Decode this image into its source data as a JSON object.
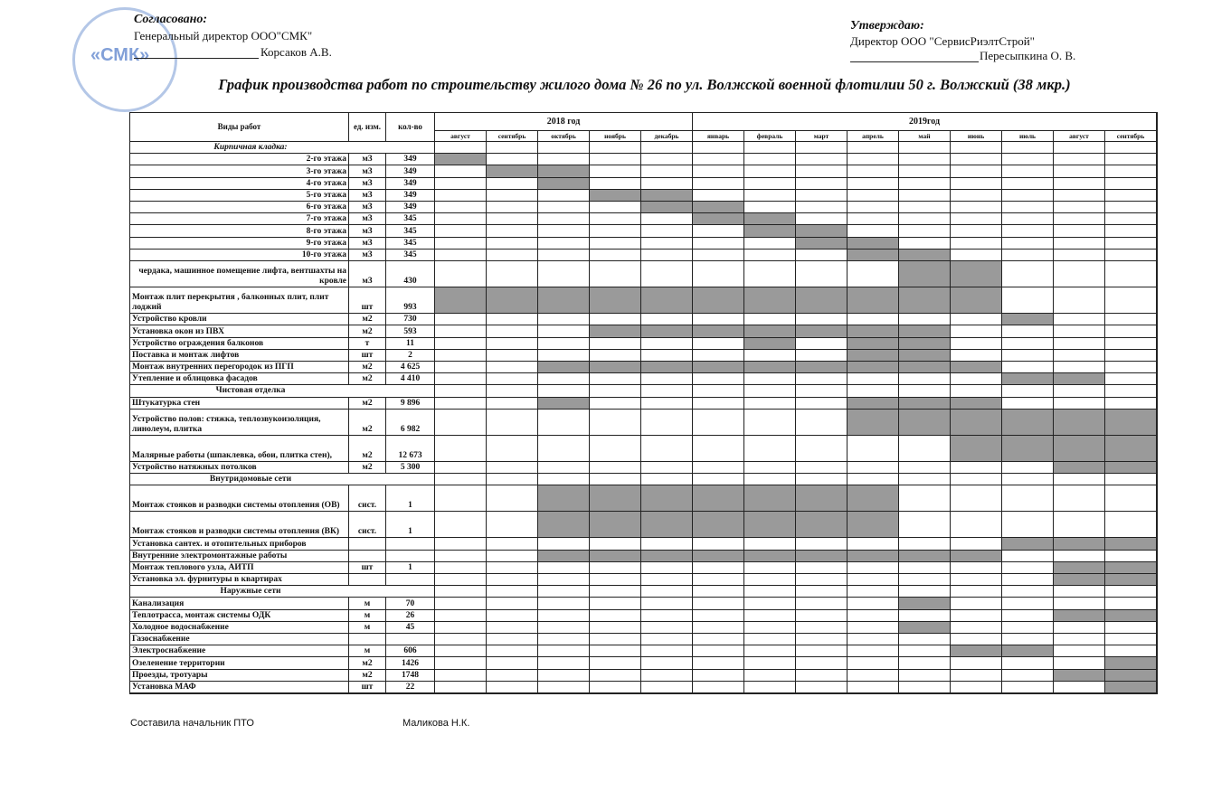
{
  "header": {
    "agreed": {
      "title": "Согласовано:",
      "position": "Генеральный директор ООО\"СМК\"",
      "name": "Корсаков А.В."
    },
    "approved": {
      "title": "Утверждаю:",
      "position": "Директор ООО \"СервисРиэлтСтрой\"",
      "name": "Пересыпкина О. В."
    },
    "stamp": "«СМК»",
    "title": "График производства работ по строительству жилого дома № 26 по ул. Волжской военной флотилии 50 г. Волжский (38 мкр.)"
  },
  "table": {
    "columns": [
      "Виды работ",
      "ед. изм.",
      "кол-во"
    ],
    "years": [
      "2018 год",
      "2019год"
    ],
    "months": [
      "август",
      "сентябрь",
      "октябрь",
      "ноябрь",
      "декабрь",
      "январь",
      "февраль",
      "март",
      "апрель",
      "май",
      "июнь",
      "июль",
      "август",
      "сентябрь"
    ],
    "rows": [
      {
        "section": "Кирпичная кладка:"
      },
      {
        "name": "2-го этажа",
        "unit": "м3",
        "qty": "349"
      },
      {
        "name": "3-го этажа",
        "unit": "м3",
        "qty": "349"
      },
      {
        "name": "4-го этажа",
        "unit": "м3",
        "qty": "349"
      },
      {
        "name": "5-го этажа",
        "unit": "м3",
        "qty": "349"
      },
      {
        "name": "6-го этажа",
        "unit": "м3",
        "qty": "349"
      },
      {
        "name": "7-го этажа",
        "unit": "м3",
        "qty": "345"
      },
      {
        "name": "8-го этажа",
        "unit": "м3",
        "qty": "345"
      },
      {
        "name": "9-го этажа",
        "unit": "м3",
        "qty": "345"
      },
      {
        "name": "10-го этажа",
        "unit": "м3",
        "qty": "345"
      },
      {
        "name": "чердака, машинное помещение лифта, вентшахты на кровле",
        "unit": "м3",
        "qty": "430"
      },
      {
        "name": "Монтаж плит перекрытия , балконных плит, плит лоджий",
        "unit": "шт",
        "qty": "993"
      },
      {
        "name": "Устройство кровли",
        "unit": "м2",
        "qty": "730"
      },
      {
        "name": "Установка окон из ПВХ",
        "unit": "м2",
        "qty": "593"
      },
      {
        "name": "Устройство ограждения балконов",
        "unit": "т",
        "qty": "11"
      },
      {
        "name": "Поставка и монтаж  лифтов",
        "unit": "шт",
        "qty": "2"
      },
      {
        "name": "Монтаж внутренних перегородок из ПГП",
        "unit": "м2",
        "qty": "4 625"
      },
      {
        "name": "Утепление  и облицовка фасадов",
        "unit": "м2",
        "qty": "4 410"
      },
      {
        "section": "Чистовая отделка"
      },
      {
        "name": "Штукатурка стен",
        "unit": "м2",
        "qty": "9 896"
      },
      {
        "name": "Устройство полов: стяжка, теплозвукоизоляция, линолеум, плитка",
        "unit": "м2",
        "qty": "6 982"
      },
      {
        "name": "Малярные работы (шпаклевка, обои, плитка стен),",
        "unit": "м2",
        "qty": "12 673"
      },
      {
        "name": "Устройство натяжных потолков",
        "unit": "м2",
        "qty": "5 300"
      },
      {
        "section": "Внутридомовые  сети"
      },
      {
        "name": "Монтаж стояков и разводки  системы отопления (ОВ)",
        "unit": "сист.",
        "qty": "1"
      },
      {
        "name": "Монтаж стояков и разводки  системы отопления (ВК)",
        "unit": "сист.",
        "qty": "1"
      },
      {
        "name": "Установка сантех. и отопительных приборов"
      },
      {
        "name": "Внутренние электромонтажные работы"
      },
      {
        "name": "Монтаж  теплового узла,  АИТП",
        "unit": "шт",
        "qty": "1"
      },
      {
        "name": "Установка эл. фурнитуры в квартирах"
      },
      {
        "section": "Наружные сети"
      },
      {
        "name": "Канализация",
        "unit": "м",
        "qty": "70"
      },
      {
        "name": "Теплотрасса, монтаж системы ОДК",
        "unit": "м",
        "qty": "26"
      },
      {
        "name": "Холодное водоснабжение",
        "unit": "м",
        "qty": "45"
      },
      {
        "name": "Газоснабжение"
      },
      {
        "name": "Электроснабжение",
        "unit": "м",
        "qty": "606"
      },
      {
        "name": "Озеленение территории",
        "unit": "м2",
        "qty": "1426"
      },
      {
        "name": "Проезды, тротуары",
        "unit": "м2",
        "qty": "1748"
      },
      {
        "name": "Установка МАФ",
        "unit": "шт",
        "qty": "22"
      }
    ]
  },
  "footer": {
    "prepared_by": "Составила начальник ПТО",
    "name": "Маликова Н.К."
  }
}
